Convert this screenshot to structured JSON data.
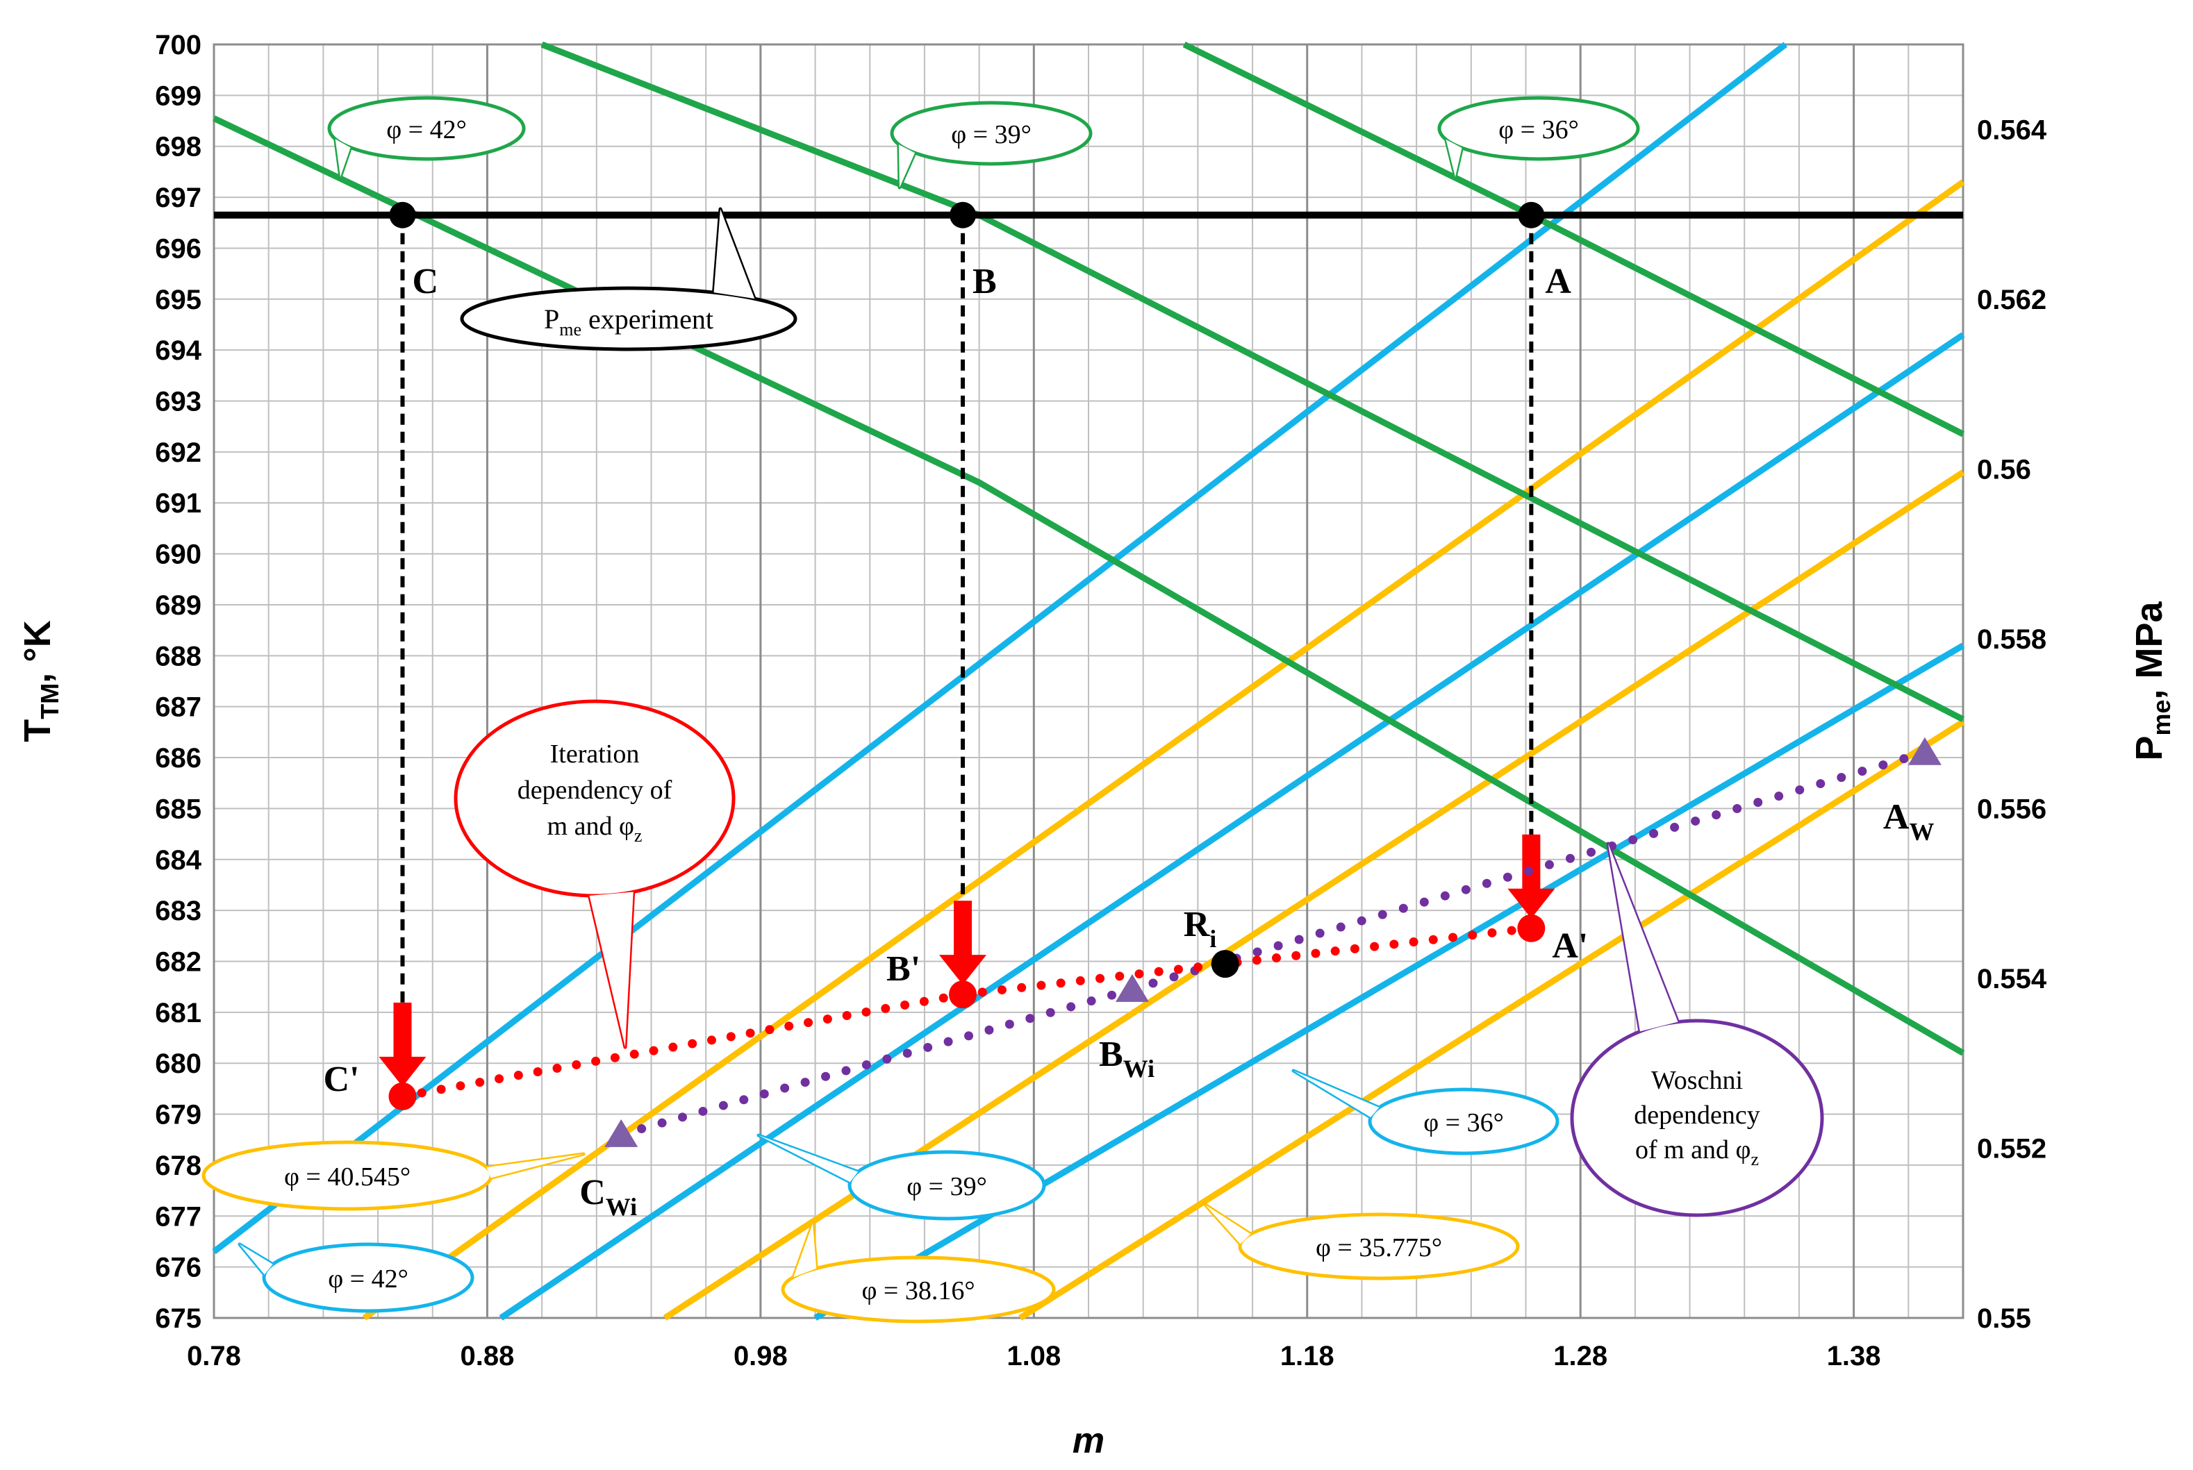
{
  "chart_data": {
    "type": "line",
    "xlabel": "m",
    "ylabel_left": {
      "main": "T",
      "sub": "TM",
      "unit": ", °K"
    },
    "ylabel_right": {
      "main": "P",
      "sub": "me",
      "unit": ", MPa"
    },
    "x_range": [
      0.78,
      1.42
    ],
    "y_range": [
      675,
      700
    ],
    "y2_range": [
      0.55,
      0.565
    ],
    "x_ticks": [
      "0.78",
      "0.88",
      "0.98",
      "1.08",
      "1.18",
      "1.28",
      "1.38"
    ],
    "y_ticks": [
      "675",
      "676",
      "677",
      "678",
      "679",
      "680",
      "681",
      "682",
      "683",
      "684",
      "685",
      "686",
      "687",
      "688",
      "689",
      "690",
      "691",
      "692",
      "693",
      "694",
      "695",
      "696",
      "697",
      "698",
      "699",
      "700"
    ],
    "y2_ticks": [
      "0.55",
      "0.552",
      "0.554",
      "0.556",
      "0.558",
      "0.56",
      "0.562",
      "0.564"
    ],
    "grid": true,
    "colors": {
      "green": "#1fa64a",
      "blue": "#14b4ea",
      "orange": "#ffc000",
      "black": "#000000",
      "red": "#ff0000",
      "purple": "#7030a0"
    },
    "pme_experiment": {
      "y": 696.65
    },
    "green_lines": [
      {
        "label": "φ = 42°",
        "points": [
          [
            0.78,
            698.55
          ],
          [
            1.06,
            691.4
          ],
          [
            1.42,
            680.2
          ]
        ]
      },
      {
        "label": "φ = 39°",
        "points": [
          [
            0.9,
            700.0
          ],
          [
            1.06,
            696.65
          ],
          [
            1.42,
            686.75
          ]
        ]
      },
      {
        "label": "φ = 36°",
        "points": [
          [
            1.135,
            700.0
          ],
          [
            1.262,
            696.65
          ],
          [
            1.42,
            692.35
          ]
        ]
      }
    ],
    "blue_lines": [
      {
        "label": "φ = 42°",
        "points": [
          [
            0.78,
            676.3
          ],
          [
            1.355,
            700.0
          ]
        ]
      },
      {
        "label": "φ = 39°",
        "points": [
          [
            0.885,
            675.0
          ],
          [
            1.42,
            694.3
          ]
        ]
      },
      {
        "label": "φ = 36°",
        "points": [
          [
            1.0,
            675.0
          ],
          [
            1.42,
            688.2
          ]
        ]
      }
    ],
    "orange_lines": [
      {
        "label": "φ = 40.545°",
        "points": [
          [
            0.835,
            675.0
          ],
          [
            1.42,
            697.3
          ]
        ]
      },
      {
        "label": "φ = 38.16°",
        "points": [
          [
            0.945,
            675.0
          ],
          [
            1.42,
            691.6
          ]
        ]
      },
      {
        "label": "φ = 35.775°",
        "points": [
          [
            1.075,
            675.0
          ],
          [
            1.42,
            686.7
          ]
        ]
      }
    ],
    "experiment_points": [
      {
        "label": "C",
        "x": 0.849,
        "y": 696.65
      },
      {
        "label": "B",
        "x": 1.054,
        "y": 696.65
      },
      {
        "label": "A",
        "x": 1.262,
        "y": 696.65
      }
    ],
    "iteration_series": {
      "name": "Iteration dependency of m and φz",
      "points": [
        {
          "label": "C'",
          "x": 0.849,
          "y": 679.35
        },
        {
          "label": "B'",
          "x": 1.054,
          "y": 681.35
        },
        {
          "label": "A'",
          "x": 1.262,
          "y": 682.65
        }
      ]
    },
    "woschni_series": {
      "name": "Woschni dependency of m and φz",
      "points": [
        {
          "label": "Cwi",
          "x": 0.929,
          "y": 678.6
        },
        {
          "label": "Bwi",
          "x": 1.116,
          "y": 681.45
        },
        {
          "label": "Aw",
          "x": 1.406,
          "y": 686.1
        }
      ]
    },
    "ri_point": {
      "label": "Ri",
      "x": 1.15,
      "y": 681.95
    },
    "callouts": {
      "green_42": "φ = 42°",
      "green_39": "φ = 39°",
      "green_36": "φ = 36°",
      "pme": "experiment",
      "pme_main": "P",
      "pme_sub": "me",
      "iteration_lines": [
        "Iteration",
        "dependency of",
        "m and φ"
      ],
      "iteration_sub": "z",
      "woschni_lines": [
        "Woschni",
        "dependency",
        "of m and φ"
      ],
      "woschni_sub": "z",
      "orange_40545": "φ = 40.545°",
      "orange_3816": "φ = 38.16°",
      "orange_35775": "φ = 35.775°",
      "blue_42": "φ = 42°",
      "blue_39": "φ = 39°",
      "blue_36": "φ = 36°"
    },
    "point_labels": {
      "C": "C",
      "B": "B",
      "A": "A",
      "C_prime": "C'",
      "B_prime": "B'",
      "A_prime": "A'",
      "Ri_main": "R",
      "Ri_sub": "i",
      "Cwi_main": "C",
      "Cwi_sub": "Wi",
      "Bwi_main": "B",
      "Bwi_sub": "Wi",
      "Aw_main": "A",
      "Aw_sub": "W"
    }
  }
}
